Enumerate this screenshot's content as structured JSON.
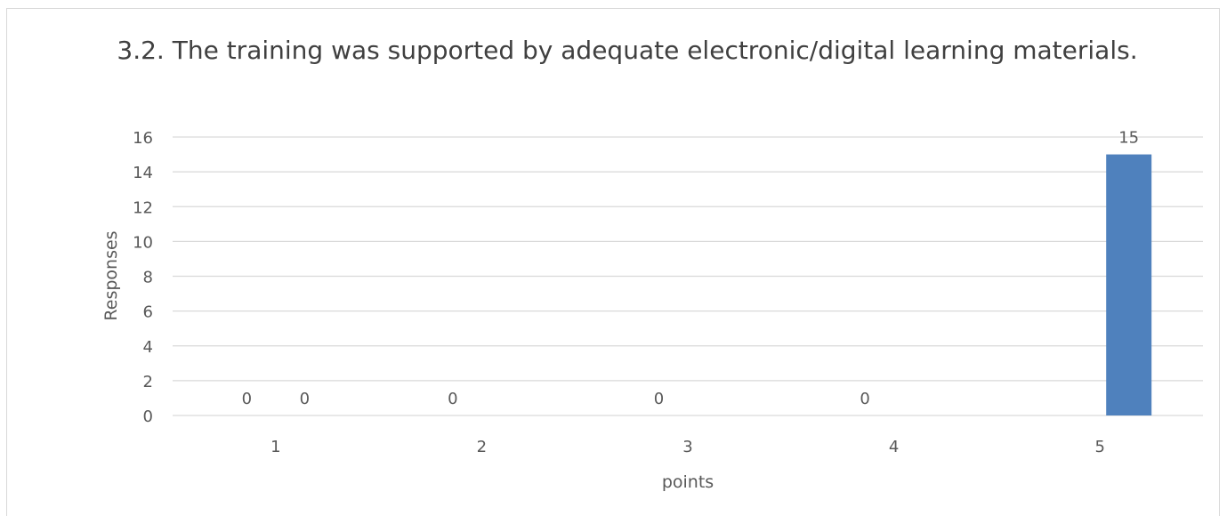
{
  "chart_data": {
    "type": "bar",
    "title": "3.2. The training was supported by adequate electronic/digital learning materials.",
    "xlabel": "points",
    "ylabel": "Responses",
    "categories": [
      "1",
      "2",
      "3",
      "4",
      "5"
    ],
    "series": [
      {
        "values": [
          0,
          0,
          0,
          0,
          0
        ],
        "data_labels": [
          "0",
          "0",
          "0",
          "0",
          ""
        ]
      },
      {
        "values": [
          0,
          0,
          0,
          0,
          15
        ],
        "data_labels": [
          "0",
          "",
          "",
          "",
          "15"
        ]
      }
    ],
    "ylim": [
      0,
      16
    ],
    "yticks": [
      0,
      2,
      4,
      6,
      8,
      10,
      12,
      14,
      16
    ],
    "grid": true,
    "legend": "none",
    "bar_color": "#4f81bd",
    "grid_color": "#d9d9d9"
  }
}
